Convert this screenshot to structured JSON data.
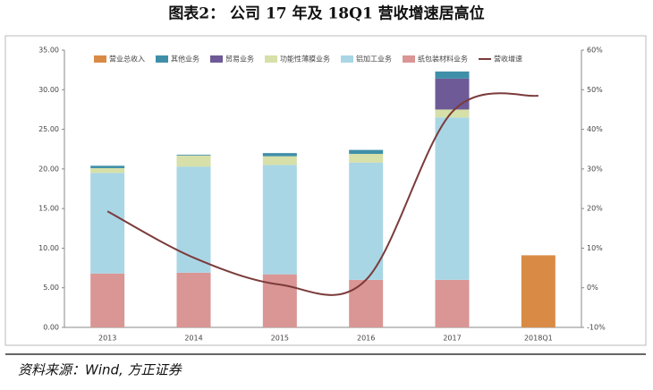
{
  "title": "图表2：  公司 17 年及 18Q1 营收增速居高位",
  "source": "资料来源：Wind, 方正证券",
  "chart_data": {
    "type": "bar",
    "categories": [
      "2013",
      "2014",
      "2015",
      "2016",
      "2017",
      "2018Q1"
    ],
    "series": [
      {
        "name": "营业总收入",
        "color": "#d98b45",
        "values": [
          null,
          null,
          null,
          null,
          null,
          9.1
        ]
      },
      {
        "name": "其他业务",
        "color": "#3f8fa8",
        "values": [
          0.3,
          0.1,
          0.4,
          0.5,
          0.9,
          null
        ]
      },
      {
        "name": "贸易业务",
        "color": "#6e5a96",
        "values": [
          0,
          0,
          0,
          0,
          3.9,
          null
        ]
      },
      {
        "name": "功能性薄膜业务",
        "color": "#d6e0a8",
        "values": [
          0.6,
          1.4,
          1.1,
          1.1,
          1.0,
          null
        ]
      },
      {
        "name": "铝加工业务",
        "color": "#a9d6e5",
        "values": [
          12.7,
          13.4,
          13.8,
          14.8,
          20.5,
          null
        ]
      },
      {
        "name": "纸包装材料业务",
        "color": "#d99694",
        "values": [
          6.8,
          6.9,
          6.7,
          6.0,
          6.0,
          null
        ]
      },
      {
        "name": "营收增速",
        "color": "#7b3b3b",
        "type": "line",
        "axis": "y2",
        "values": [
          19.3,
          7.6,
          0.8,
          2,
          44.4,
          48.5
        ]
      }
    ],
    "ylim": [
      0,
      35
    ],
    "yticks": [
      {
        "value": 0,
        "label": "0.00"
      },
      {
        "value": 5,
        "label": "5.00"
      },
      {
        "value": 10,
        "label": "10.00"
      },
      {
        "value": 15,
        "label": "15.00"
      },
      {
        "value": 20,
        "label": "20.00"
      },
      {
        "value": 25,
        "label": "25.00"
      },
      {
        "value": 30,
        "label": "30.00"
      },
      {
        "value": 35,
        "label": "35.00"
      }
    ],
    "y2lim": [
      -10,
      60
    ],
    "y2ticks": [
      {
        "value": -10,
        "label": "-10%"
      },
      {
        "value": 0,
        "label": "0%"
      },
      {
        "value": 10,
        "label": "10%"
      },
      {
        "value": 20,
        "label": "20%"
      },
      {
        "value": 30,
        "label": "30%"
      },
      {
        "value": 40,
        "label": "40%"
      },
      {
        "value": 50,
        "label": "50%"
      },
      {
        "value": 60,
        "label": "60%"
      }
    ]
  }
}
